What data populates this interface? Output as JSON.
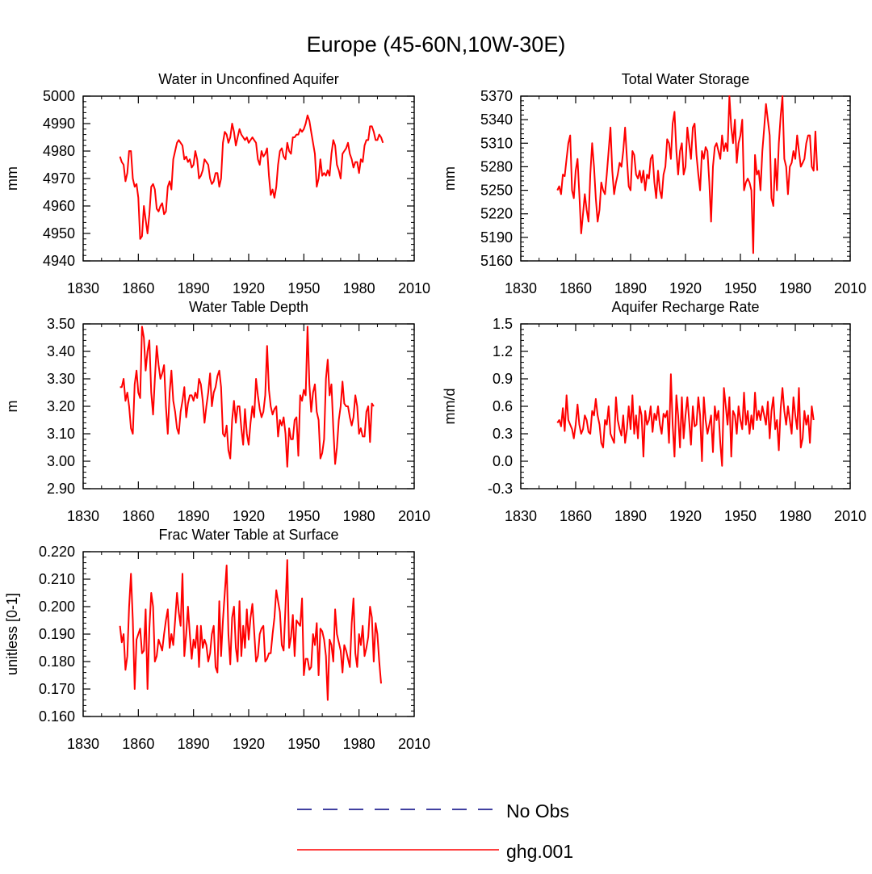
{
  "title": "Europe (45-60N,10W-30E)",
  "legend": [
    {
      "label": "No Obs",
      "color": "#000080",
      "style": "dashed"
    },
    {
      "label": "ghg.001",
      "color": "#ff0000",
      "style": "solid"
    }
  ],
  "colors": {
    "series": "#ff0000",
    "axis": "#000000",
    "legend_dash": "#000080"
  },
  "chart_data": [
    {
      "type": "line",
      "title": "Water in Unconfined Aquifer",
      "xlabel": "",
      "ylabel": "mm",
      "xlim": [
        1830,
        2010
      ],
      "ylim": [
        4940,
        5000
      ],
      "xticks": [
        1830,
        1860,
        1890,
        1920,
        1950,
        1980,
        2010
      ],
      "ytick_labels": [
        "4940",
        "4950",
        "4960",
        "4970",
        "4980",
        "4990",
        "5000"
      ],
      "x_start": 1850,
      "series": [
        {
          "name": "ghg.001",
          "values": [
            4978,
            4976,
            4975,
            4969,
            4972,
            4980,
            4980,
            4970,
            4967,
            4968,
            4963,
            4948,
            4949,
            4960,
            4955,
            4950,
            4957,
            4967,
            4968,
            4966,
            4959,
            4958,
            4960,
            4961,
            4957,
            4958,
            4967,
            4969,
            4966,
            4977,
            4980,
            4983,
            4984,
            4983,
            4982,
            4977,
            4978,
            4976,
            4977,
            4974,
            4975,
            4980,
            4977,
            4970,
            4971,
            4973,
            4977,
            4976,
            4975,
            4970,
            4968,
            4969,
            4972,
            4972,
            4967,
            4970,
            4983,
            4987,
            4986,
            4983,
            4985,
            4990,
            4987,
            4982,
            4985,
            4988,
            4986,
            4985,
            4984,
            4985,
            4983,
            4984,
            4985,
            4984,
            4983,
            4977,
            4975,
            4980,
            4978,
            4979,
            4981,
            4971,
            4964,
            4966,
            4963,
            4967,
            4975,
            4980,
            4981,
            4978,
            4977,
            4983,
            4980,
            4979,
            4985,
            4985,
            4986,
            4986,
            4988,
            4987,
            4988,
            4990,
            4993,
            4991,
            4987,
            4983,
            4979,
            4967,
            4970,
            4977,
            4971,
            4972,
            4971,
            4973,
            4971,
            4979,
            4984,
            4982,
            4975,
            4973,
            4970,
            4979,
            4980,
            4981,
            4983,
            4979,
            4977,
            4974,
            4976,
            4976,
            4972,
            4977,
            4976,
            4982,
            4984,
            4984,
            4989,
            4989,
            4987,
            4984,
            4984,
            4986,
            4985,
            4983
          ]
        }
      ]
    },
    {
      "type": "line",
      "title": "Total Water Storage",
      "xlabel": "",
      "ylabel": "mm",
      "xlim": [
        1830,
        2010
      ],
      "ylim": [
        5160,
        5370
      ],
      "xticks": [
        1830,
        1860,
        1890,
        1920,
        1950,
        1980,
        2010
      ],
      "ytick_labels": [
        "5160",
        "5190",
        "5220",
        "5250",
        "5280",
        "5310",
        "5340",
        "5370"
      ],
      "x_start": 1850,
      "series": [
        {
          "name": "ghg.001",
          "values": [
            5250,
            5255,
            5245,
            5270,
            5268,
            5290,
            5310,
            5320,
            5250,
            5240,
            5275,
            5290,
            5245,
            5195,
            5220,
            5245,
            5225,
            5210,
            5270,
            5310,
            5280,
            5240,
            5210,
            5225,
            5260,
            5250,
            5245,
            5270,
            5300,
            5330,
            5275,
            5245,
            5260,
            5270,
            5285,
            5280,
            5300,
            5330,
            5290,
            5255,
            5250,
            5300,
            5295,
            5270,
            5265,
            5275,
            5260,
            5275,
            5250,
            5270,
            5265,
            5290,
            5295,
            5260,
            5240,
            5275,
            5250,
            5240,
            5270,
            5280,
            5315,
            5310,
            5290,
            5335,
            5350,
            5300,
            5270,
            5300,
            5310,
            5270,
            5280,
            5330,
            5310,
            5290,
            5330,
            5335,
            5295,
            5270,
            5250,
            5300,
            5290,
            5305,
            5300,
            5260,
            5210,
            5280,
            5305,
            5310,
            5300,
            5290,
            5320,
            5300,
            5310,
            5300,
            5370,
            5330,
            5310,
            5340,
            5285,
            5310,
            5320,
            5340,
            5250,
            5260,
            5265,
            5260,
            5250,
            5170,
            5295,
            5270,
            5275,
            5250,
            5300,
            5330,
            5360,
            5340,
            5320,
            5240,
            5230,
            5290,
            5250,
            5310,
            5345,
            5370,
            5290,
            5280,
            5245,
            5280,
            5285,
            5300,
            5290,
            5320,
            5300,
            5280,
            5285,
            5290,
            5310,
            5320,
            5320,
            5280,
            5275,
            5325,
            5275
          ]
        }
      ]
    },
    {
      "type": "line",
      "title": "Water Table Depth",
      "xlabel": "",
      "ylabel": "m",
      "xlim": [
        1830,
        2010
      ],
      "ylim": [
        2.9,
        3.5
      ],
      "xticks": [
        1830,
        1860,
        1890,
        1920,
        1950,
        1980,
        2010
      ],
      "ytick_labels": [
        "2.90",
        "3.00",
        "3.10",
        "3.20",
        "3.30",
        "3.40",
        "3.50"
      ],
      "x_start": 1850,
      "series": [
        {
          "name": "ghg.001",
          "values": [
            3.27,
            3.27,
            3.3,
            3.22,
            3.25,
            3.2,
            3.12,
            3.1,
            3.28,
            3.33,
            3.25,
            3.23,
            3.49,
            3.45,
            3.33,
            3.4,
            3.44,
            3.25,
            3.17,
            3.3,
            3.42,
            3.35,
            3.3,
            3.32,
            3.35,
            3.2,
            3.1,
            3.25,
            3.33,
            3.22,
            3.18,
            3.12,
            3.1,
            3.18,
            3.22,
            3.27,
            3.16,
            3.21,
            3.24,
            3.24,
            3.22,
            3.25,
            3.23,
            3.3,
            3.28,
            3.22,
            3.14,
            3.2,
            3.25,
            3.32,
            3.2,
            3.25,
            3.27,
            3.31,
            3.33,
            3.27,
            3.1,
            3.09,
            3.13,
            3.04,
            3.01,
            3.15,
            3.22,
            3.14,
            3.2,
            3.2,
            3.12,
            3.06,
            3.19,
            3.1,
            3.06,
            3.14,
            3.2,
            3.16,
            3.3,
            3.24,
            3.19,
            3.16,
            3.18,
            3.24,
            3.42,
            3.26,
            3.2,
            3.17,
            3.19,
            3.2,
            3.09,
            3.15,
            3.13,
            3.16,
            3.1,
            2.98,
            3.12,
            3.08,
            3.08,
            3.15,
            3.16,
            3.02,
            3.24,
            3.22,
            3.26,
            3.24,
            3.49,
            3.28,
            3.18,
            3.25,
            3.28,
            3.18,
            3.15,
            3.01,
            3.03,
            3.08,
            3.3,
            3.37,
            3.24,
            3.28,
            3.12,
            2.99,
            3.05,
            3.15,
            3.2,
            3.29,
            3.21,
            3.2,
            3.2,
            3.16,
            3.13,
            3.16,
            3.24,
            3.2,
            3.1,
            3.12,
            3.09,
            3.09,
            3.18,
            3.2,
            3.07,
            3.21,
            3.2
          ]
        }
      ]
    },
    {
      "type": "line",
      "title": "Aquifer Recharge Rate",
      "xlabel": "",
      "ylabel": "mm/d",
      "xlim": [
        1830,
        2010
      ],
      "ylim": [
        -0.3,
        1.5
      ],
      "xticks": [
        1830,
        1860,
        1890,
        1920,
        1950,
        1980,
        2010
      ],
      "ytick_labels": [
        "-0.3",
        "0.0",
        "0.3",
        "0.6",
        "0.9",
        "1.2",
        "1.5"
      ],
      "x_start": 1850,
      "series": [
        {
          "name": "ghg.001",
          "values": [
            0.42,
            0.45,
            0.38,
            0.58,
            0.33,
            0.72,
            0.45,
            0.4,
            0.35,
            0.25,
            0.4,
            0.62,
            0.4,
            0.3,
            0.35,
            0.5,
            0.45,
            0.32,
            0.3,
            0.55,
            0.5,
            0.68,
            0.5,
            0.4,
            0.2,
            0.15,
            0.45,
            0.4,
            0.6,
            0.3,
            0.25,
            0.2,
            0.7,
            0.45,
            0.35,
            0.28,
            0.5,
            0.2,
            0.35,
            0.6,
            0.35,
            0.72,
            0.3,
            0.5,
            0.25,
            0.6,
            0.5,
            0.05,
            0.55,
            0.4,
            0.45,
            0.6,
            0.32,
            0.52,
            0.45,
            0.6,
            0.4,
            0.3,
            0.52,
            0.48,
            0.55,
            0.2,
            0.95,
            0.4,
            0.05,
            0.72,
            0.5,
            0.15,
            0.7,
            0.25,
            0.5,
            0.7,
            0.45,
            0.18,
            0.6,
            0.38,
            0.4,
            0.7,
            0.5,
            0.0,
            0.7,
            0.45,
            0.3,
            0.4,
            0.5,
            0.1,
            0.6,
            0.45,
            0.55,
            0.2,
            -0.05,
            0.8,
            0.6,
            0.4,
            0.7,
            0.05,
            0.55,
            0.5,
            0.3,
            0.6,
            0.45,
            0.35,
            0.75,
            0.4,
            0.55,
            0.3,
            0.5,
            0.35,
            0.75,
            0.45,
            0.55,
            0.45,
            0.6,
            0.5,
            0.4,
            0.65,
            0.25,
            0.55,
            0.7,
            0.35,
            0.45,
            0.12,
            0.58,
            0.8,
            0.55,
            0.4,
            0.6,
            0.45,
            0.3,
            0.7,
            0.5,
            0.35,
            0.8,
            0.15,
            0.25,
            0.55,
            0.4,
            0.5,
            0.2,
            0.6,
            0.45
          ]
        }
      ]
    },
    {
      "type": "line",
      "title": "Frac Water Table at Surface",
      "xlabel": "",
      "ylabel": "unitless [0-1]",
      "xlim": [
        1830,
        2010
      ],
      "ylim": [
        0.16,
        0.22
      ],
      "xticks": [
        1830,
        1860,
        1890,
        1920,
        1950,
        1980,
        2010
      ],
      "ytick_labels": [
        "0.160",
        "0.170",
        "0.180",
        "0.190",
        "0.200",
        "0.210",
        "0.220"
      ],
      "x_start": 1850,
      "series": [
        {
          "name": "ghg.001",
          "values": [
            0.193,
            0.187,
            0.19,
            0.177,
            0.182,
            0.2,
            0.212,
            0.195,
            0.17,
            0.188,
            0.19,
            0.192,
            0.183,
            0.184,
            0.199,
            0.17,
            0.192,
            0.205,
            0.2,
            0.18,
            0.182,
            0.188,
            0.186,
            0.184,
            0.19,
            0.195,
            0.199,
            0.185,
            0.19,
            0.186,
            0.195,
            0.205,
            0.198,
            0.193,
            0.212,
            0.182,
            0.19,
            0.2,
            0.19,
            0.181,
            0.188,
            0.185,
            0.193,
            0.178,
            0.193,
            0.185,
            0.188,
            0.186,
            0.18,
            0.183,
            0.19,
            0.193,
            0.178,
            0.176,
            0.202,
            0.182,
            0.195,
            0.205,
            0.215,
            0.19,
            0.179,
            0.196,
            0.2,
            0.185,
            0.18,
            0.202,
            0.182,
            0.193,
            0.185,
            0.199,
            0.188,
            0.196,
            0.201,
            0.191,
            0.18,
            0.182,
            0.19,
            0.192,
            0.193,
            0.18,
            0.181,
            0.183,
            0.183,
            0.19,
            0.196,
            0.206,
            0.202,
            0.198,
            0.186,
            0.184,
            0.2,
            0.217,
            0.185,
            0.189,
            0.197,
            0.182,
            0.195,
            0.194,
            0.193,
            0.203,
            0.175,
            0.181,
            0.181,
            0.177,
            0.178,
            0.19,
            0.186,
            0.194,
            0.175,
            0.192,
            0.191,
            0.188,
            0.182,
            0.166,
            0.188,
            0.186,
            0.18,
            0.199,
            0.19,
            0.187,
            0.184,
            0.176,
            0.186,
            0.184,
            0.181,
            0.178,
            0.194,
            0.203,
            0.183,
            0.178,
            0.19,
            0.186,
            0.193,
            0.182,
            0.185,
            0.189,
            0.2,
            0.196,
            0.18,
            0.194,
            0.19,
            0.18,
            0.172
          ]
        }
      ]
    }
  ]
}
